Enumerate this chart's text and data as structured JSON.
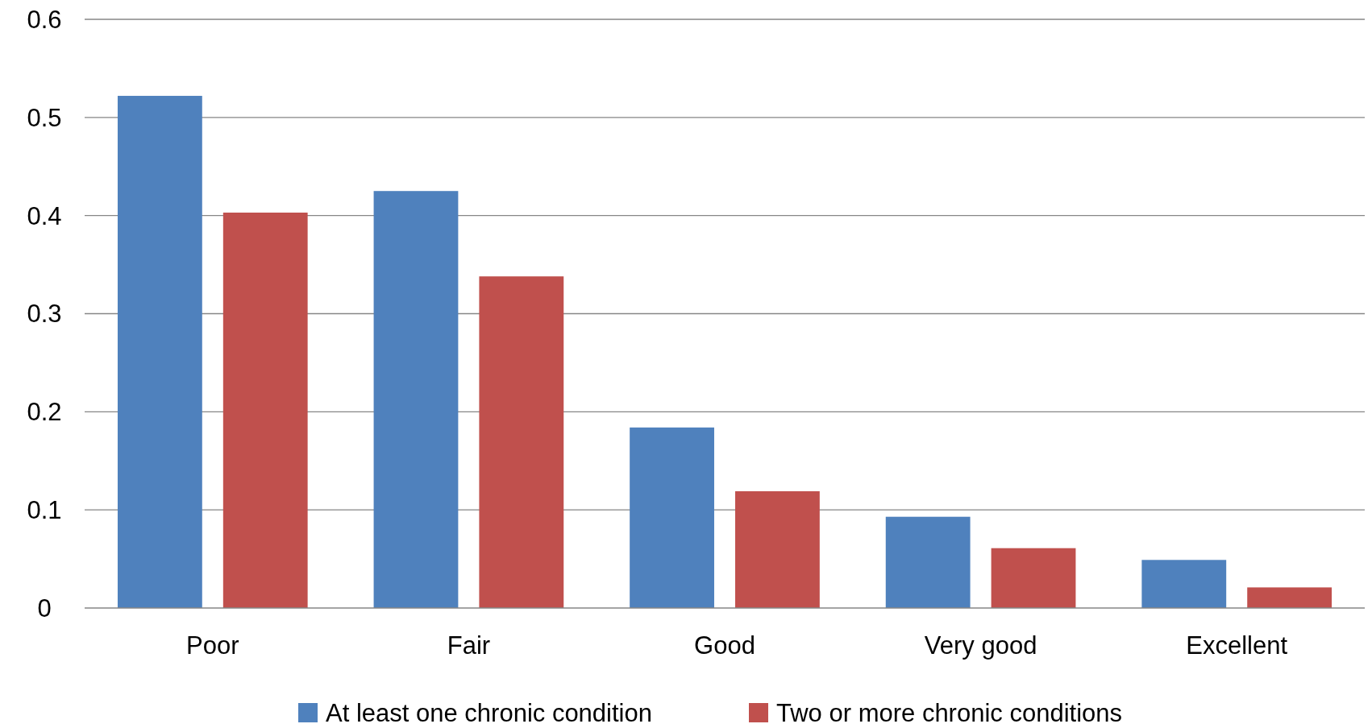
{
  "chart_data": {
    "type": "bar",
    "categories": [
      "Poor",
      "Fair",
      "Good",
      "Very good",
      "Excellent"
    ],
    "series": [
      {
        "name": "At least one chronic condition",
        "color": "#4f81bd",
        "values": [
          0.522,
          0.425,
          0.184,
          0.093,
          0.049
        ]
      },
      {
        "name": "Two or more chronic conditions",
        "color": "#c0504d",
        "values": [
          0.403,
          0.338,
          0.119,
          0.061,
          0.021
        ]
      }
    ],
    "ylim": [
      0,
      0.6
    ],
    "yticks": [
      0,
      {
        "value": 0.1,
        "label": "0.1"
      },
      {
        "value": 0.2,
        "label": "0.2"
      },
      {
        "value": 0.3,
        "label": "0.3"
      },
      {
        "value": 0.4,
        "label": "0.4"
      },
      {
        "value": 0.5,
        "label": "0.5"
      },
      {
        "value": 0.6,
        "label": "0.6"
      }
    ],
    "grid": "y",
    "legend": "bottom"
  }
}
